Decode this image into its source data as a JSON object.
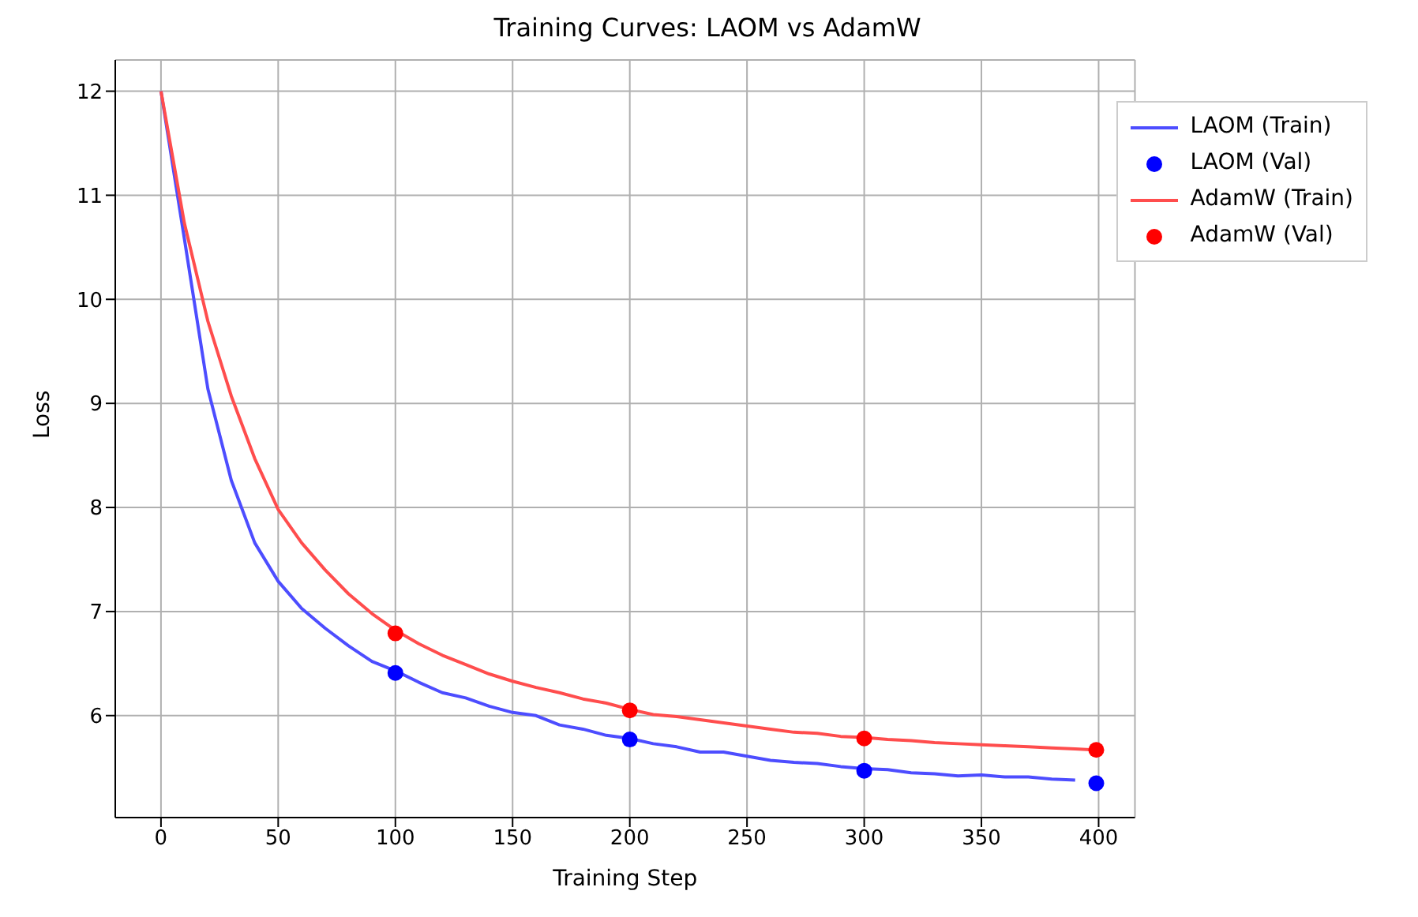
{
  "chart_data": {
    "type": "line",
    "title": "Training Curves: LAOM vs AdamW",
    "xlabel": "Training Step",
    "ylabel": "Loss",
    "xlim": [
      -19.5,
      415.5
    ],
    "ylim": [
      5.02,
      12.3
    ],
    "xticks": [
      0,
      50,
      100,
      150,
      200,
      250,
      300,
      350,
      400
    ],
    "yticks": [
      6,
      7,
      8,
      9,
      10,
      11,
      12
    ],
    "grid": true,
    "legend": "top right",
    "series": [
      {
        "name": "LAOM (Train)",
        "color": "#4d4dff",
        "x": [
          0,
          10,
          20,
          30,
          40,
          50,
          60,
          70,
          80,
          90,
          100,
          110,
          120,
          130,
          140,
          150,
          160,
          170,
          180,
          190,
          200,
          210,
          220,
          230,
          240,
          250,
          260,
          270,
          280,
          290,
          300,
          310,
          320,
          330,
          340,
          350,
          360,
          370,
          380,
          390
        ],
        "values": [
          12,
          10.58,
          9.14,
          8.26,
          7.66,
          7.29,
          7.03,
          6.84,
          6.67,
          6.52,
          6.43,
          6.32,
          6.22,
          6.17,
          6.09,
          6.03,
          6.0,
          5.91,
          5.87,
          5.81,
          5.78,
          5.73,
          5.7,
          5.65,
          5.65,
          5.61,
          5.57,
          5.55,
          5.54,
          5.51,
          5.49,
          5.48,
          5.45,
          5.44,
          5.42,
          5.43,
          5.41,
          5.41,
          5.39,
          5.38
        ]
      },
      {
        "name": "LAOM (Val)",
        "type": "scatter",
        "color": "#0000ff",
        "x": [
          100,
          200,
          300,
          399
        ],
        "values": [
          6.41,
          5.77,
          5.47,
          5.35
        ]
      },
      {
        "name": "AdamW (Train)",
        "color": "#ff4d4d",
        "x": [
          0,
          10,
          20,
          30,
          40,
          50,
          60,
          70,
          80,
          90,
          100,
          110,
          120,
          130,
          140,
          150,
          160,
          170,
          180,
          190,
          200,
          210,
          220,
          230,
          240,
          250,
          260,
          270,
          280,
          290,
          300,
          310,
          320,
          330,
          340,
          350,
          360,
          370,
          380,
          390,
          398
        ],
        "values": [
          12,
          10.73,
          9.79,
          9.07,
          8.47,
          7.98,
          7.66,
          7.4,
          7.17,
          6.98,
          6.82,
          6.69,
          6.58,
          6.49,
          6.4,
          6.33,
          6.27,
          6.22,
          6.16,
          6.12,
          6.06,
          6.01,
          5.99,
          5.96,
          5.93,
          5.9,
          5.87,
          5.84,
          5.83,
          5.8,
          5.79,
          5.77,
          5.76,
          5.74,
          5.73,
          5.72,
          5.71,
          5.7,
          5.69,
          5.68,
          5.67
        ]
      },
      {
        "name": "AdamW (Val)",
        "type": "scatter",
        "color": "#ff0000",
        "x": [
          100,
          200,
          300,
          399
        ],
        "values": [
          6.79,
          6.05,
          5.78,
          5.67
        ]
      }
    ]
  }
}
